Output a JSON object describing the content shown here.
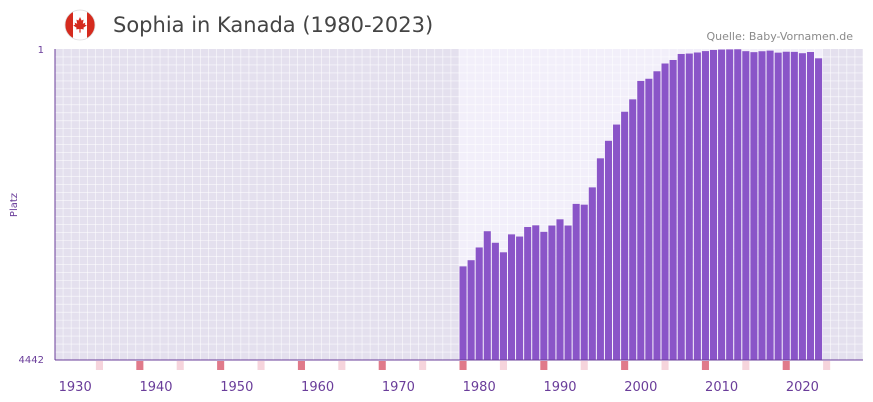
{
  "header": {
    "title": "Sophia in Kanada (1980-2023)",
    "source": "Quelle: Baby-Vornamen.de"
  },
  "colors": {
    "bar": "#8a55c8",
    "axis": "#6a3d9a",
    "tick_label": "#6a3d9a",
    "background": "#e4e0ee",
    "highlight_background": "#f2effa",
    "decade_marker": "#e07a8a",
    "half_decade_marker": "#f6d4dc"
  },
  "chart_data": {
    "type": "bar",
    "title": "Sophia in Kanada (1980-2023)",
    "xlabel": "",
    "ylabel": "Platz",
    "y_axis_inverted": true,
    "ylim": [
      1,
      4442
    ],
    "y_tick_labels": [
      "1",
      "4442"
    ],
    "x_range": [
      1928,
      2028
    ],
    "x_tick_labels": [
      "1930",
      "1940",
      "1950",
      "1960",
      "1970",
      "1980",
      "1990",
      "2000",
      "2010",
      "2020"
    ],
    "x_tick_years": [
      1930,
      1940,
      1950,
      1960,
      1970,
      1980,
      1990,
      2000,
      2010,
      2020
    ],
    "highlight_range": [
      1978,
      2022
    ],
    "years": [
      1978,
      1979,
      1980,
      1981,
      1982,
      1983,
      1984,
      1985,
      1986,
      1987,
      1988,
      1989,
      1990,
      1991,
      1992,
      1993,
      1994,
      1995,
      1996,
      1997,
      1998,
      1999,
      2000,
      2001,
      2002,
      2003,
      2004,
      2005,
      2006,
      2007,
      2008,
      2009,
      2010,
      2011,
      2012,
      2013,
      2014,
      2015,
      2016,
      2017,
      2018,
      2019,
      2020,
      2021,
      2022
    ],
    "values": [
      3105,
      3017,
      2835,
      2603,
      2768,
      2904,
      2648,
      2679,
      2543,
      2519,
      2612,
      2522,
      2433,
      2522,
      2213,
      2224,
      1977,
      1562,
      1312,
      1080,
      897,
      720,
      457,
      426,
      319,
      208,
      158,
      72,
      66,
      51,
      31,
      15,
      9,
      7,
      5,
      32,
      46,
      33,
      24,
      53,
      40,
      42,
      61,
      44,
      134
    ]
  }
}
